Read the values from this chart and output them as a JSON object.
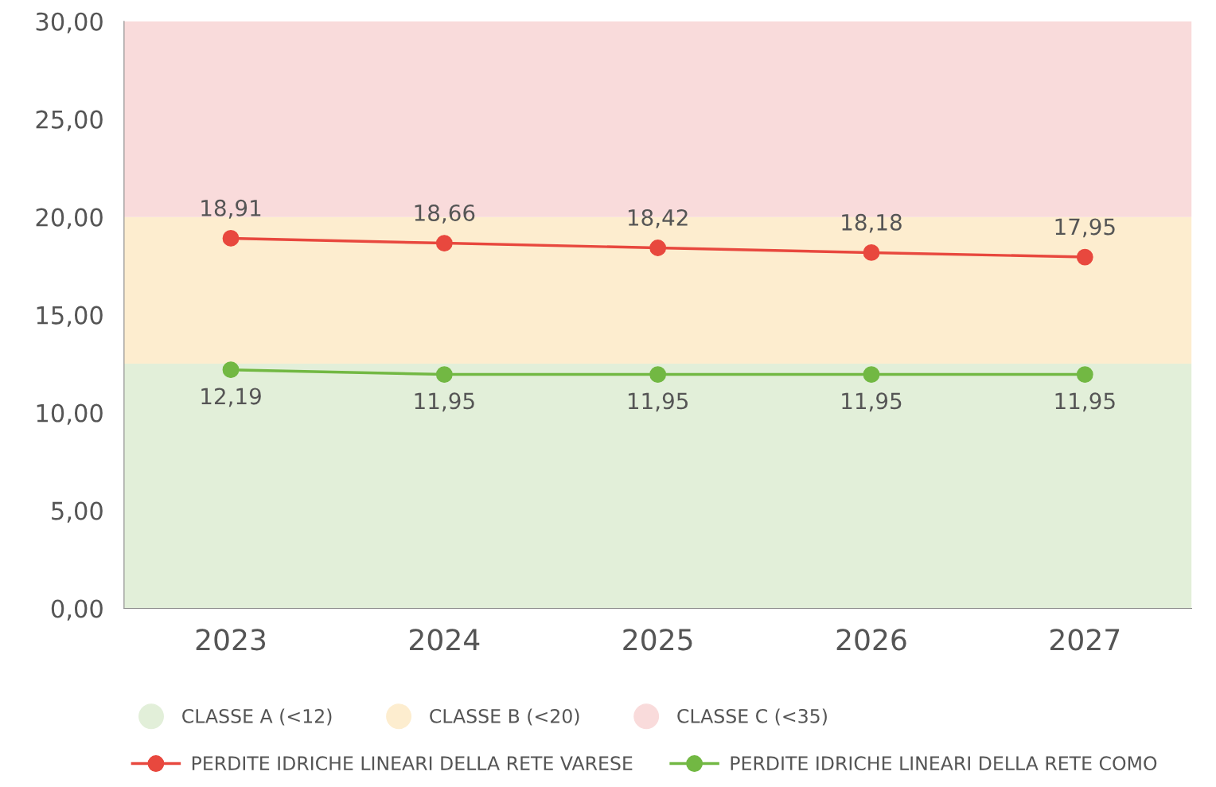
{
  "chart_data": {
    "type": "line",
    "categories": [
      "2023",
      "2024",
      "2025",
      "2026",
      "2027"
    ],
    "series": [
      {
        "name": "PERDITE IDRICHE LINEARI DELLA RETE VARESE",
        "color": "#e8483e",
        "values": [
          18.91,
          18.66,
          18.42,
          18.18,
          17.95
        ],
        "value_labels": [
          "18,91",
          "18,66",
          "18,42",
          "18,18",
          "17,95"
        ]
      },
      {
        "name": "PERDITE IDRICHE LINEARI DELLA RETE COMO",
        "color": "#72b843",
        "values": [
          12.19,
          11.95,
          11.95,
          11.95,
          11.95
        ],
        "value_labels": [
          "12,19",
          "11,95",
          "11,95",
          "11,95",
          "11,95"
        ]
      }
    ],
    "bands": [
      {
        "axis": "y",
        "from": 0,
        "to": 12.5,
        "label": "CLASSE A (<12)",
        "color": "#e2efd9"
      },
      {
        "axis": "y",
        "from": 12.5,
        "to": 20,
        "label": "CLASSE B (<20)",
        "color": "#fdedcf"
      },
      {
        "axis": "y",
        "from": 20,
        "to": 30,
        "label": "CLASSE C (<35)",
        "color": "#f9dbdb"
      }
    ],
    "ylim": [
      0,
      30
    ],
    "yticks": [
      {
        "value": 0,
        "label": "0,00"
      },
      {
        "value": 5,
        "label": "5,00"
      },
      {
        "value": 10,
        "label": "10,00"
      },
      {
        "value": 15,
        "label": "15,00"
      },
      {
        "value": 20,
        "label": "20,00"
      },
      {
        "value": 25,
        "label": "25,00"
      },
      {
        "value": 30,
        "label": "30,00"
      }
    ],
    "marker": "circle",
    "line_style": "solid",
    "grid": false,
    "legend": "bottom"
  }
}
